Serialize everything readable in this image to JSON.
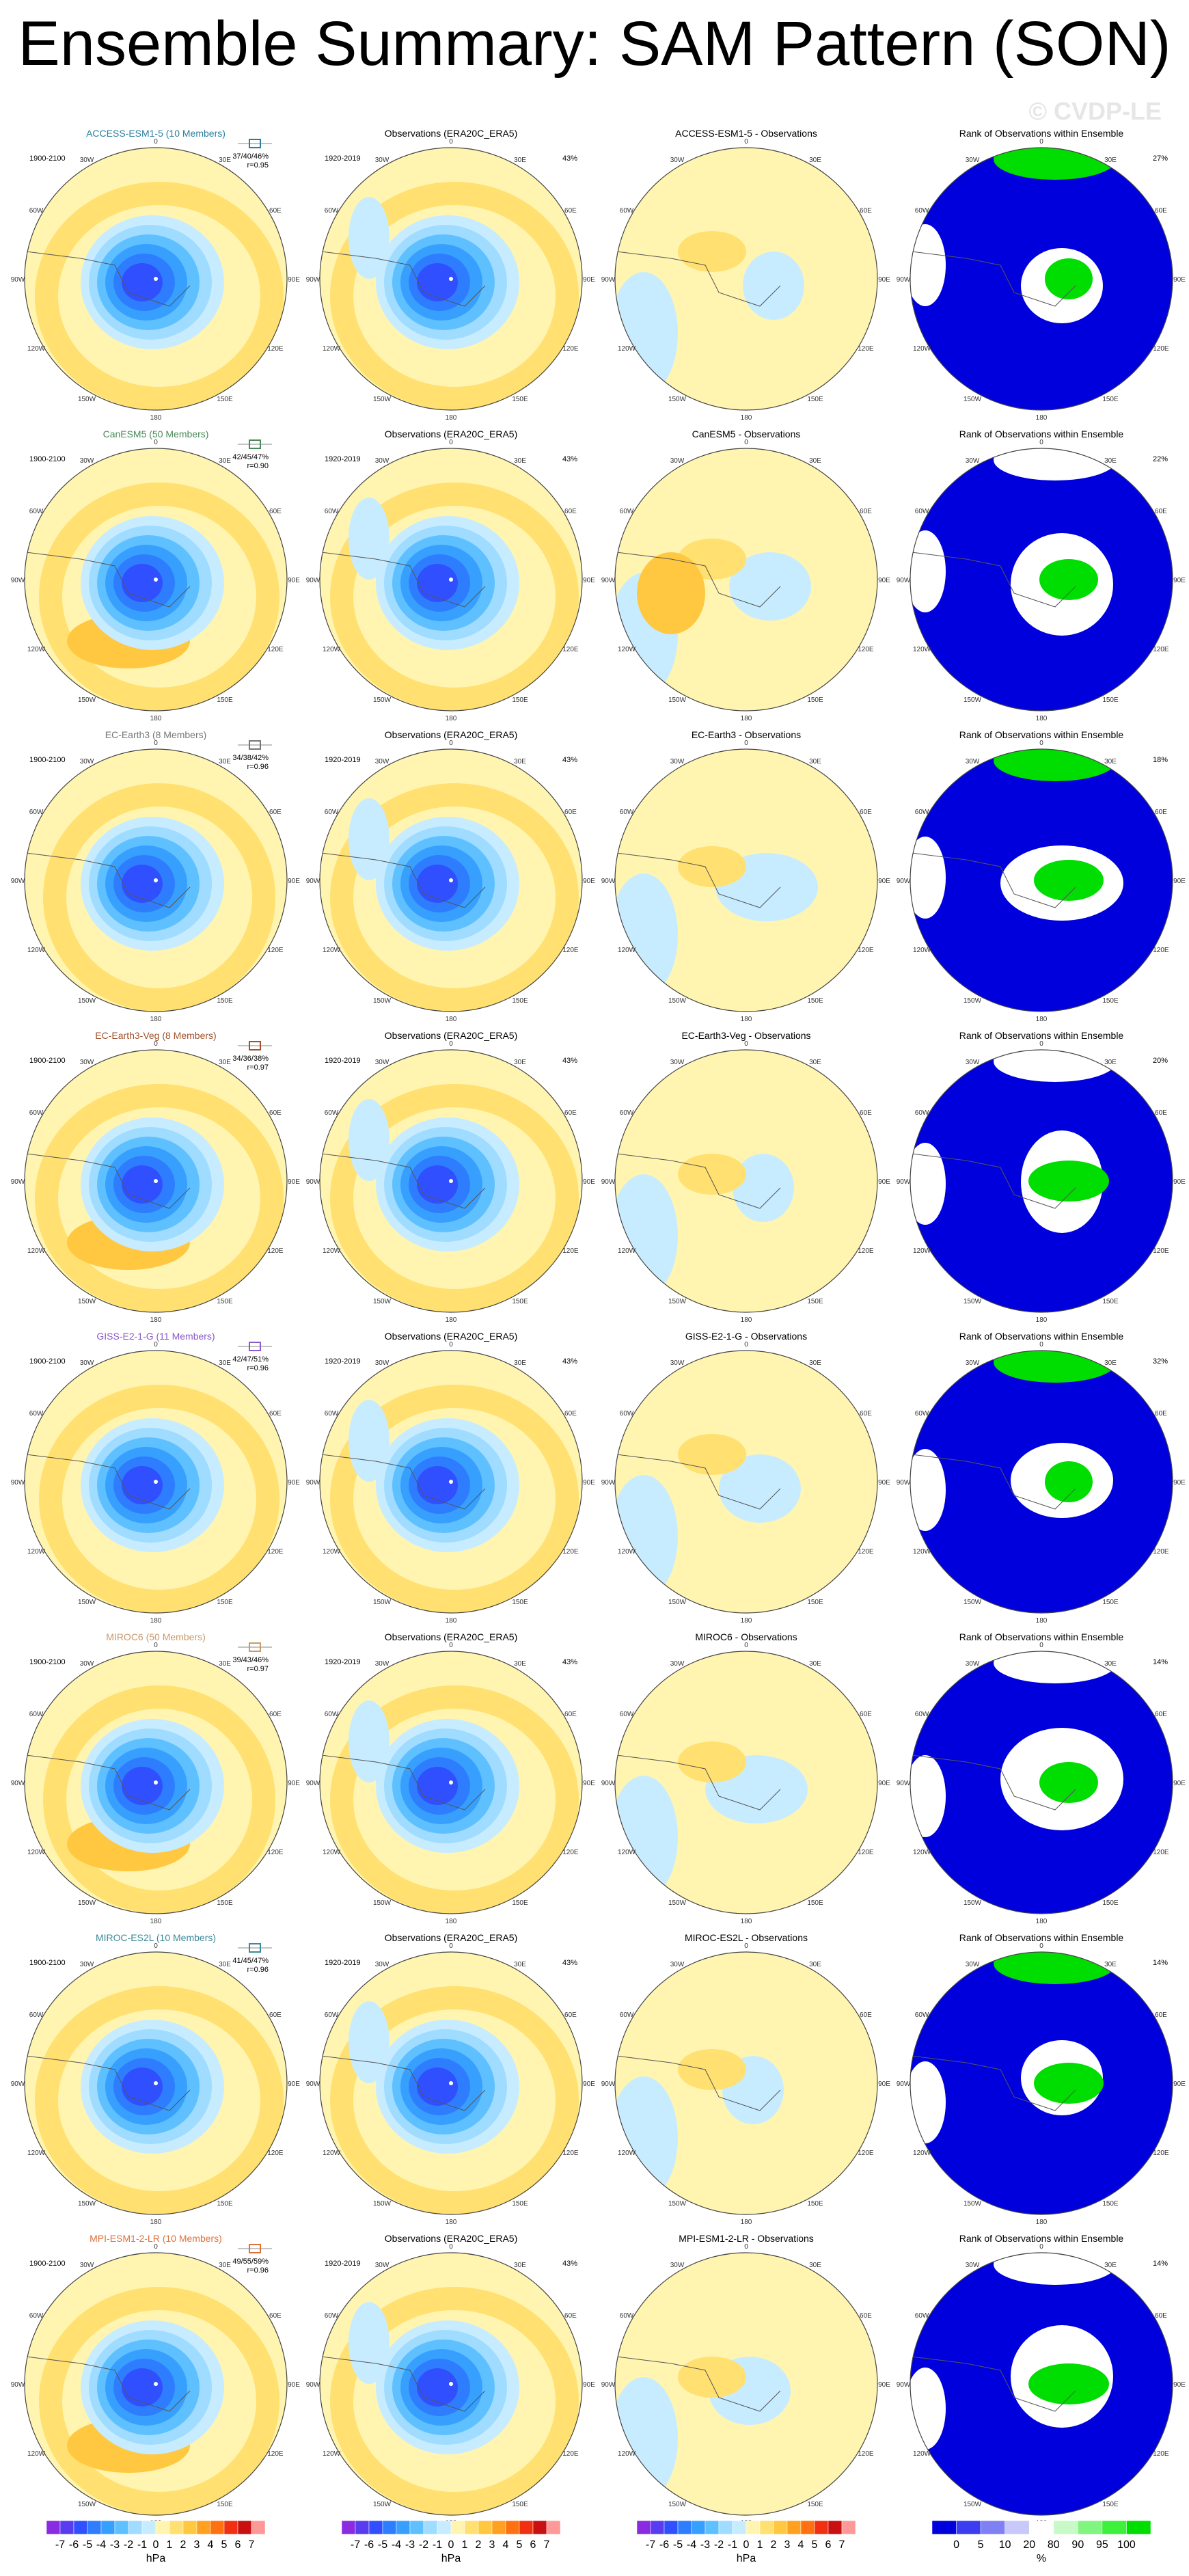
{
  "header": {
    "title": "Ensemble Summary: SAM Pattern (SON)",
    "watermark": "© CVDP-LE"
  },
  "labels": {
    "model_period": "1900-2100",
    "obs_period": "1920-2019",
    "obs_title": "Observations (ERA20C_ERA5)",
    "rank_title": "Rank of Observations within Ensemble",
    "obs_pct": "43%"
  },
  "lon_labels": [
    "0",
    "30E",
    "60E",
    "90E",
    "120E",
    "150E",
    "180",
    "150W",
    "120W",
    "90W",
    "60W",
    "30W"
  ],
  "rows": [
    {
      "model": "ACCESS-ESM1-5 (10 Members)",
      "color": "#2a7f9e",
      "stats": "37/40/46%",
      "r": "r=0.95",
      "diff_title": "ACCESS-ESM1-5 - Observations",
      "rank_pct": "27%"
    },
    {
      "model": "CanESM5 (50 Members)",
      "color": "#4a8a5a",
      "stats": "42/45/47%",
      "r": "r=0.90",
      "diff_title": "CanESM5 - Observations",
      "rank_pct": "22%"
    },
    {
      "model": "EC-Earth3 (8 Members)",
      "color": "#777777",
      "stats": "34/38/42%",
      "r": "r=0.96",
      "diff_title": "EC-Earth3 - Observations",
      "rank_pct": "18%"
    },
    {
      "model": "EC-Earth3-Veg (8 Members)",
      "color": "#a0522d",
      "stats": "34/36/38%",
      "r": "r=0.97",
      "diff_title": "EC-Earth3-Veg - Observations",
      "rank_pct": "20%"
    },
    {
      "model": "GISS-E2-1-G (11 Members)",
      "color": "#8a5ac8",
      "stats": "42/47/51%",
      "r": "r=0.96",
      "diff_title": "GISS-E2-1-G - Observations",
      "rank_pct": "32%"
    },
    {
      "model": "MIROC6 (50 Members)",
      "color": "#c89a6a",
      "stats": "39/43/46%",
      "r": "r=0.97",
      "diff_title": "MIROC6 - Observations",
      "rank_pct": "14%"
    },
    {
      "model": "MIROC-ES2L (10 Members)",
      "color": "#3a8a9a",
      "stats": "41/45/47%",
      "r": "r=0.96",
      "diff_title": "MIROC-ES2L - Observations",
      "rank_pct": "14%"
    },
    {
      "model": "MPI-ESM1-2-LR (10 Members)",
      "color": "#e0703a",
      "stats": "49/55/59%",
      "r": "r=0.96",
      "diff_title": "MPI-ESM1-2-LR - Observations",
      "rank_pct": "14%"
    }
  ],
  "colorbars": {
    "hpa": {
      "unit": "hPa",
      "labels": [
        -7,
        -6,
        -5,
        -4,
        -3,
        -2,
        -1,
        0,
        1,
        2,
        3,
        4,
        5,
        6,
        7
      ],
      "colors": [
        "#8a2be2",
        "#5a3cf0",
        "#3050ff",
        "#2f7dff",
        "#37a0ff",
        "#5fc0ff",
        "#9fdcff",
        "#c8ecff",
        "#fff5b0",
        "#ffe070",
        "#ffc840",
        "#ffa020",
        "#ff7010",
        "#f03010",
        "#c81010",
        "#ff9999"
      ]
    },
    "rank": {
      "unit": "%",
      "labels": [
        0,
        5,
        10,
        20,
        80,
        90,
        95,
        100
      ],
      "colors": [
        "#0000dd",
        "#3c3cf0",
        "#8080f5",
        "#c8c8fa",
        "#ffffff",
        "#c8fac8",
        "#80f580",
        "#3cf03c",
        "#00dd00"
      ]
    }
  }
}
